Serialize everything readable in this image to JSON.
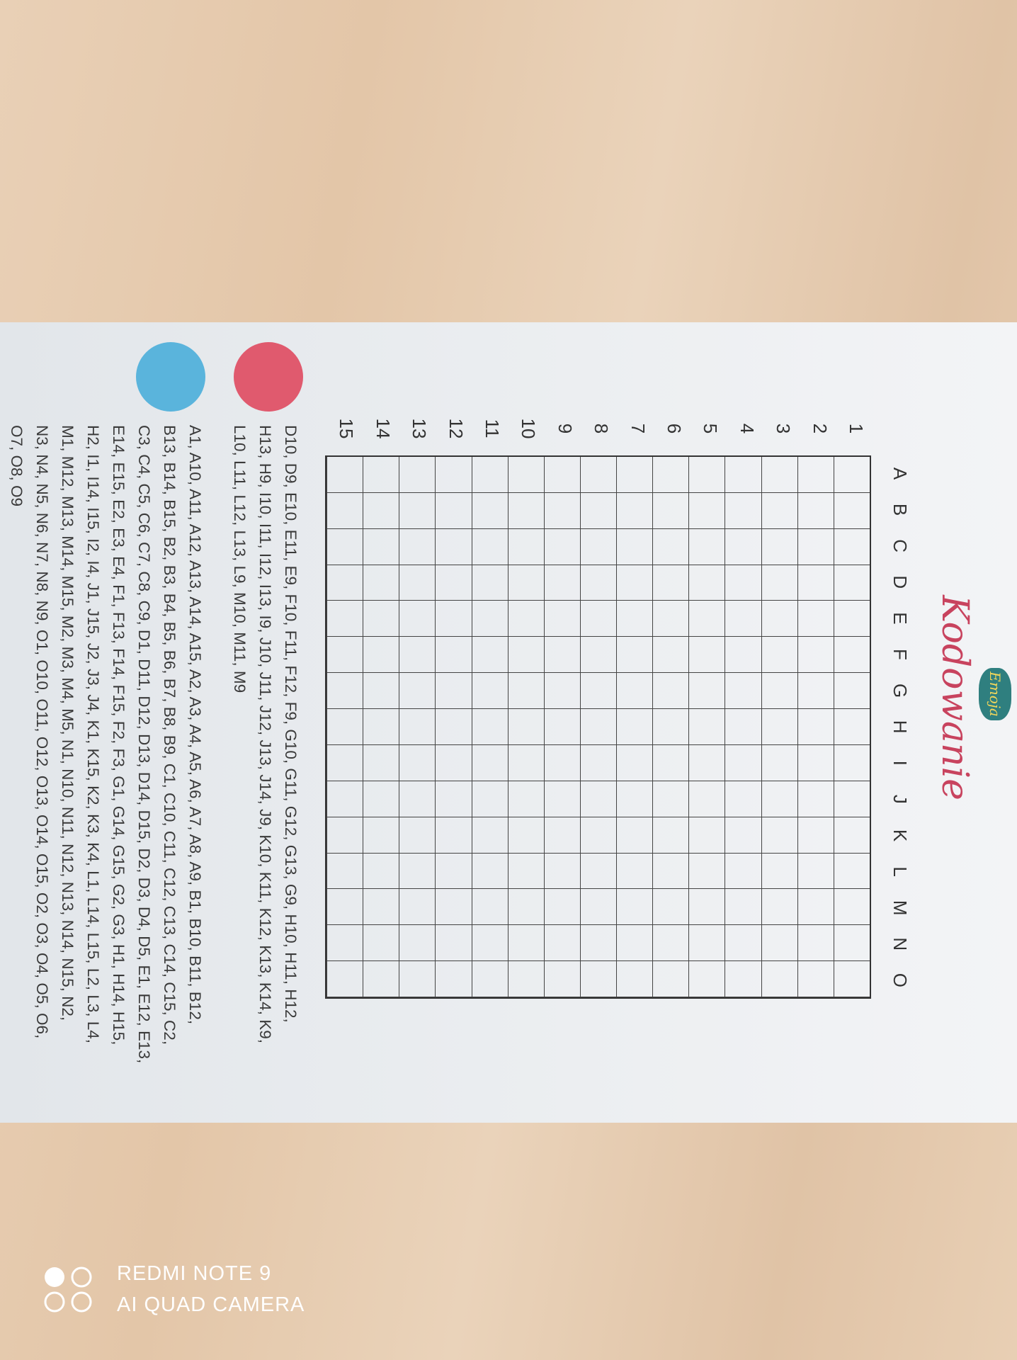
{
  "logo": {
    "text": "Emoja"
  },
  "title": "Kodowanie",
  "grid": {
    "columns": [
      "A",
      "B",
      "C",
      "D",
      "E",
      "F",
      "G",
      "H",
      "I",
      "J",
      "K",
      "L",
      "M",
      "N",
      "O"
    ],
    "rows": [
      "1",
      "2",
      "3",
      "4",
      "5",
      "6",
      "7",
      "8",
      "9",
      "10",
      "11",
      "12",
      "13",
      "14",
      "15"
    ]
  },
  "colors": {
    "red": "#e05a6e",
    "blue": "#5ab4dc",
    "title": "#c8435e"
  },
  "red_list": {
    "lines": [
      "D10, D9, E10, E11, E9, F10, F11, F12, F9, G10, G11, G12, G13, G9, H10, H11, H12,",
      "H13, H9, I10, I11, I12, I13, I9, J10, J11, J12, J13, J14, J9, K10, K11, K12, K13, K14, K9,",
      "L10, L11, L12, L13, L9, M10, M11, M9"
    ]
  },
  "blue_list": {
    "lines": [
      "A1, A10, A11, A12, A13, A14, A15, A2, A3, A4, A5, A6, A7, A8, A9, B1, B10, B11, B12,",
      "B13, B14, B15, B2, B3, B4, B5, B6, B7, B8, B9, C1, C10, C11, C12, C13, C14, C15, C2,",
      "C3, C4, C5, C6, C7, C8, C9, D1, D11, D12, D13, D14, D15, D2, D3, D4, D5, E1, E12, E13,",
      "E14, E15, E2, E3, E4, F1, F13, F14, F15, F2, F3, G1, G14, G15, G2, G3, H1, H14, H15,",
      "H2, I1, I14, I15, I2, I4, J1, J15, J2, J3, J4, K1, K15, K2, K3, K4, L1, L14, L15, L2, L3, L4,",
      "M1, M12, M13, M14, M15, M2, M3, M4, M5, N1, N10, N11, N12, N13, N14, N15, N2,",
      "N3, N4, N5, N6, N7, N8, N9, O1, O10, O11, O12, O13, O14, O15, O2, O3, O4, O5, O6,",
      "O7, O8, O9"
    ]
  },
  "watermark": {
    "line1": "REDMI NOTE 9",
    "line2": "AI QUAD CAMERA"
  }
}
